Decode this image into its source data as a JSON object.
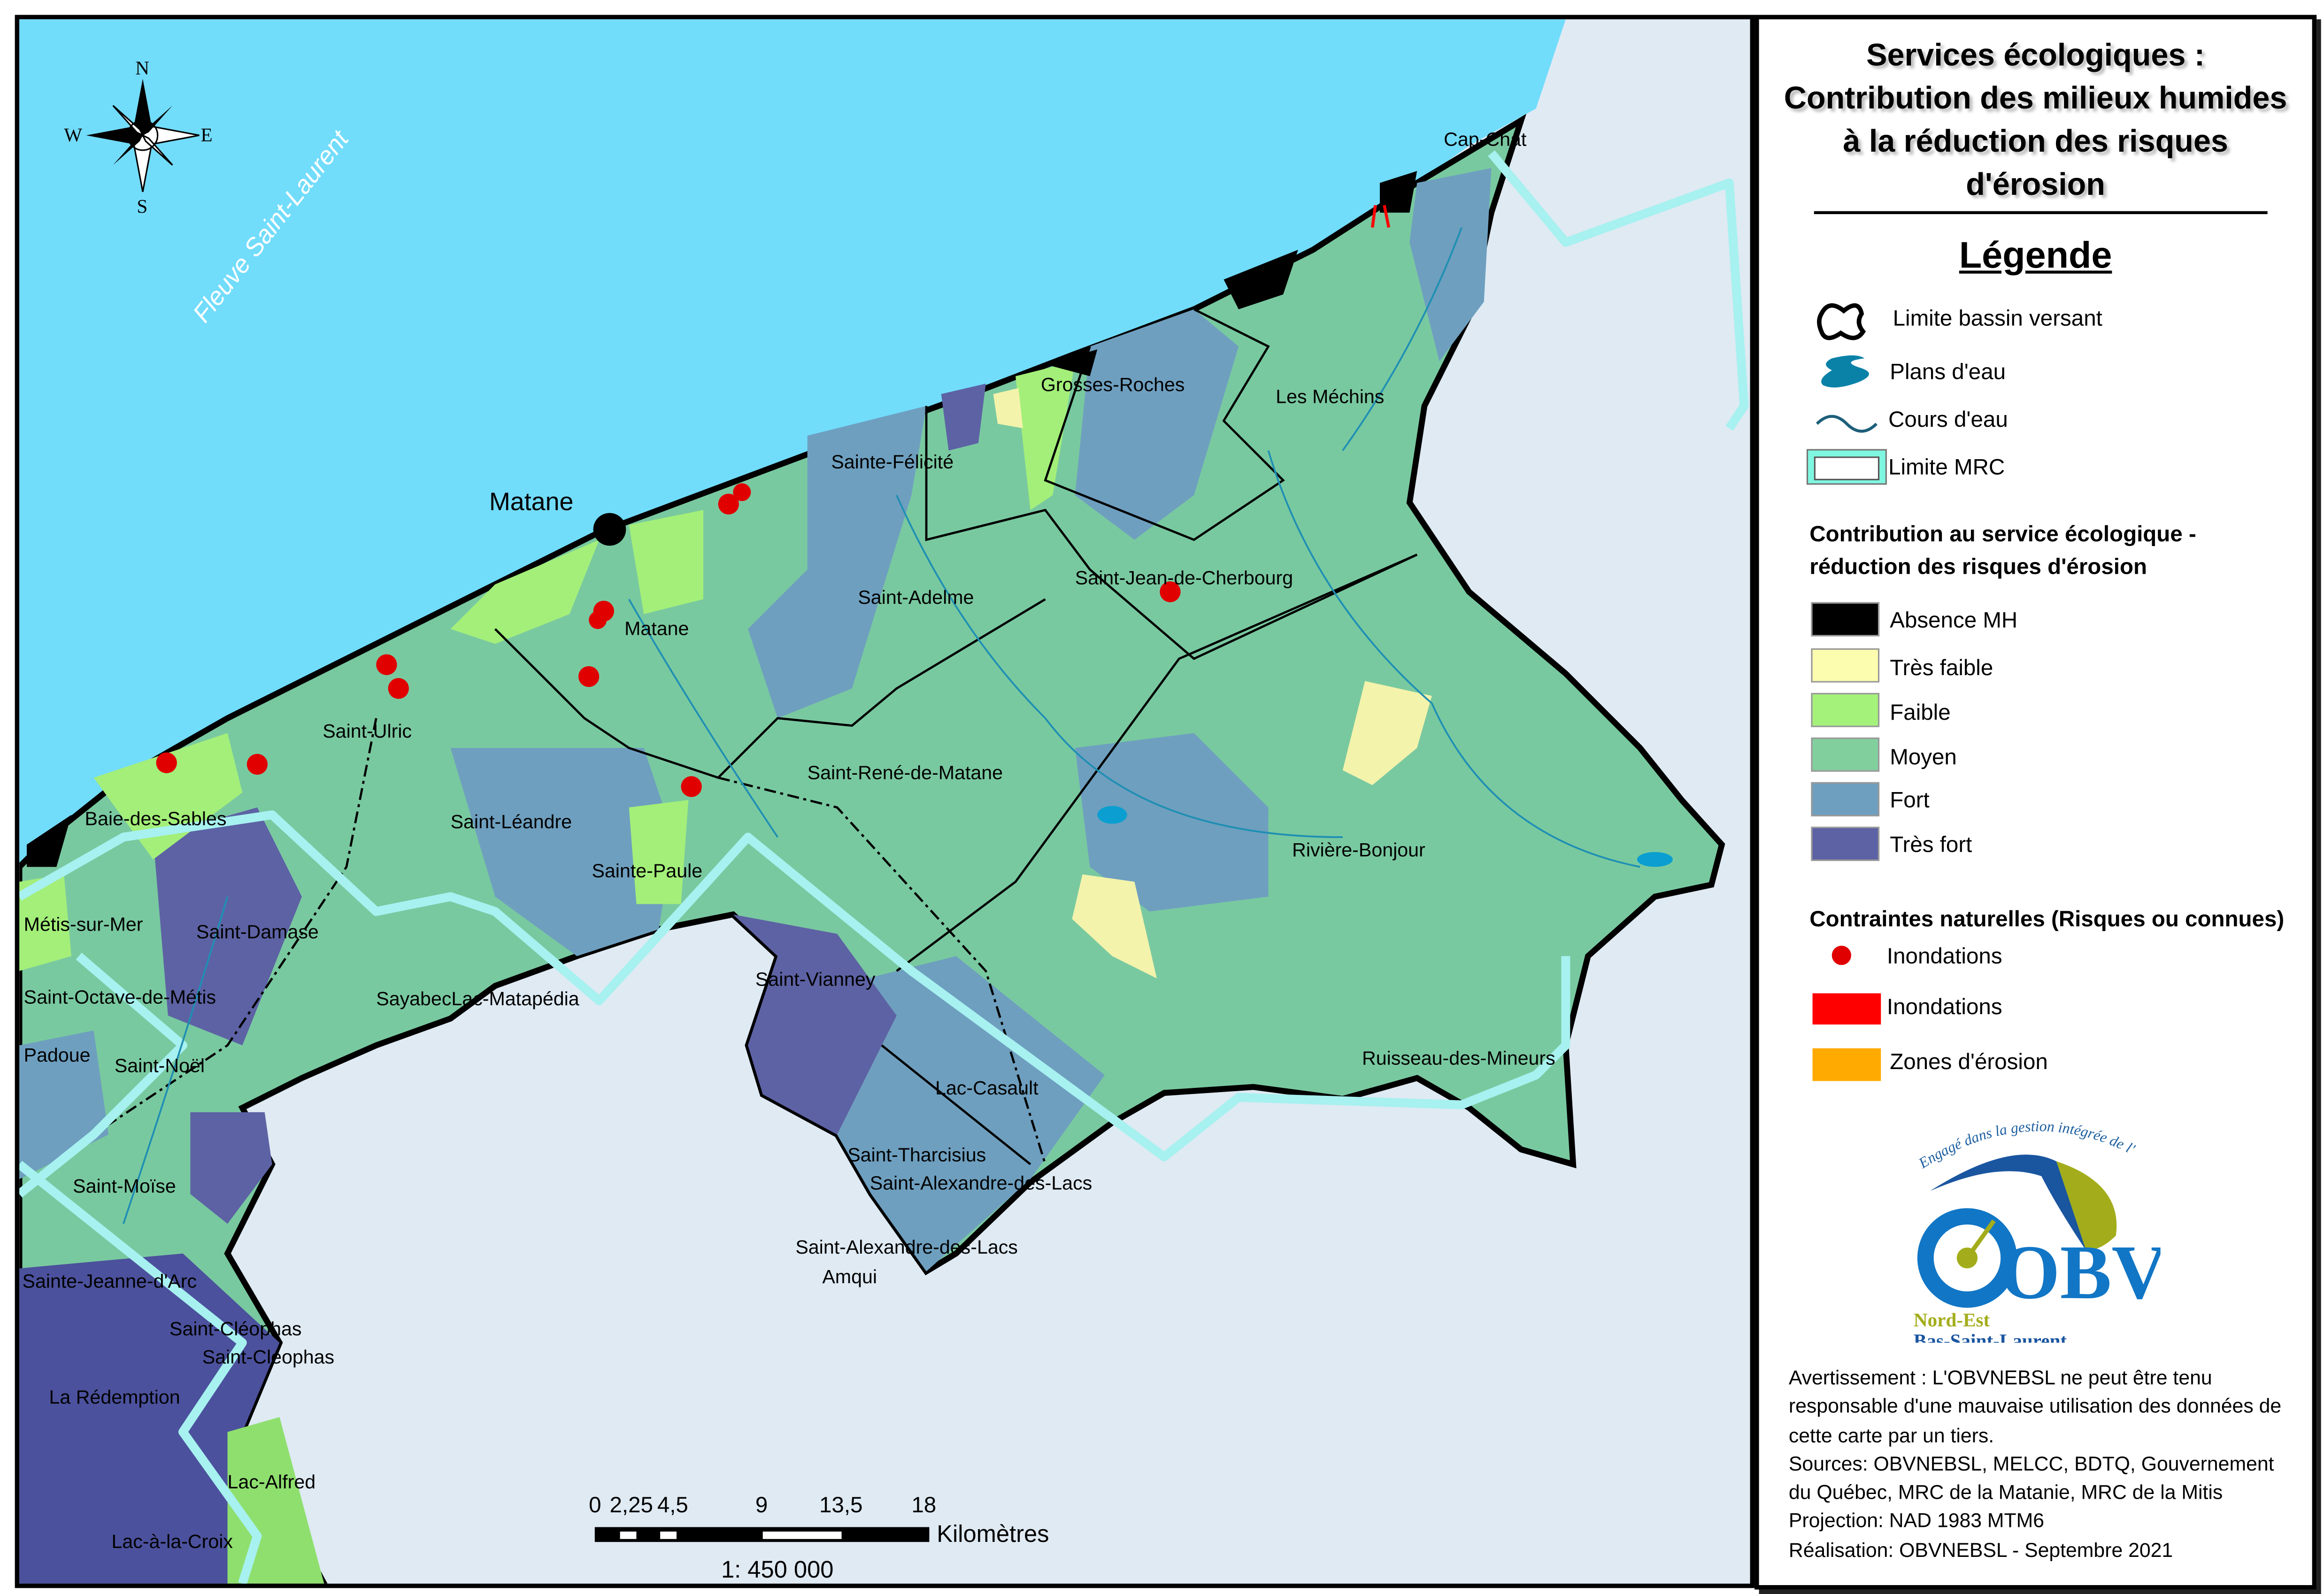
{
  "title": {
    "line1": "Services écologiques :",
    "line2": "Contribution des milieux humides",
    "line3": "à la réduction des risques",
    "line4": "d'érosion"
  },
  "legend": {
    "heading": "Légende",
    "base_items": [
      {
        "label": "Limite bassin versant",
        "icon": "watershed-outline-icon"
      },
      {
        "label": "Plans d'eau",
        "icon": "water-body-icon",
        "color": "#0a82a8"
      },
      {
        "label": "Cours d'eau",
        "icon": "stream-line-icon",
        "color": "#1d5f7a"
      },
      {
        "label": "Limite MRC",
        "icon": "mrc-boundary-icon",
        "color": "#7ff7e0"
      }
    ],
    "contribution_heading_1": "Contribution au service écologique -",
    "contribution_heading_2": "réduction des risques d'érosion",
    "classes": [
      {
        "label": "Absence MH",
        "color": "#000000"
      },
      {
        "label": "Très faible",
        "color": "#fdfdb0"
      },
      {
        "label": "Faible",
        "color": "#a4f27a"
      },
      {
        "label": "Moyen",
        "color": "#82cf9e"
      },
      {
        "label": "Fort",
        "color": "#6f9fbf"
      },
      {
        "label": "Très fort",
        "color": "#5d62a4"
      }
    ],
    "constraints_heading": "Contraintes naturelles (Risques ou connues)",
    "constraints": [
      {
        "label": "Inondations",
        "icon": "flood-point-icon",
        "color": "#e00000"
      },
      {
        "label": "Inondations",
        "icon": "flood-zone-icon",
        "color": "#ff0000"
      },
      {
        "label": "Zones d'érosion",
        "icon": "erosion-zone-icon",
        "color": "#ffaa00"
      }
    ]
  },
  "logo": {
    "tagline": "Engagé dans la gestion intégrée de l'eau",
    "letters": "OBV",
    "line1": "Nord-Est",
    "line2": "Bas-Saint-Laurent"
  },
  "footer": {
    "warning": "Avertissement : L'OBVNEBSL ne peut être tenu responsable d'une mauvaise utilisation des données de cette carte par un tiers.",
    "sources": "Sources: OBVNEBSL, MELCC, BDTQ, Gouvernement du Québec, MRC de la Matanie, MRC de la Mitis",
    "projection": "Projection: NAD 1983 MTM6",
    "realisation": "Réalisation: OBVNEBSL - Septembre 2021"
  },
  "compass": {
    "n": "N",
    "s": "S",
    "e": "E",
    "w": "W"
  },
  "scale_bar": {
    "ticks": [
      "0",
      "2,25",
      "4,5",
      "9",
      "13,5",
      "18"
    ],
    "unit": "Kilomètres",
    "ratio": "1: 450 000"
  },
  "map": {
    "water_label": "Fleuve Saint-Laurent",
    "city_label": "Matane",
    "colors": {
      "sea": "#72dcfb",
      "terrain": "#dfeaf3",
      "mrc": "#a7f1f0"
    },
    "labels": [
      "Cap-Chat",
      "Grosses-Roches",
      "Les Méchins",
      "Sainte-Félicité",
      "Saint-Adelme",
      "Saint-Jean-de-Cherbourg",
      "Matane",
      "Saint-Ulric",
      "Saint-René-de-Matane",
      "Baie-des-Sables",
      "Saint-Léandre",
      "Sainte-Paule",
      "Rivière-Bonjour",
      "Métis-sur-Mer",
      "Saint-Damase",
      "Saint-Octave-de-Métis",
      "SayabecLac-Matapédia",
      "Saint-Vianney",
      "Padoue",
      "Saint-Noël",
      "Lac-Casault",
      "Ruisseau-des-Mineurs",
      "Saint-Tharcisius",
      "Saint-Alexandre-des-Lacs",
      "Saint-Moïse",
      "Saint-Alexandre-des-Lacs",
      "Amqui",
      "Sainte-Jeanne-d'Arc",
      "Saint-Cléophas",
      "Saint-Cléophas",
      "La Rédemption",
      "Lac-Alfred",
      "Lac-à-la-Croix"
    ]
  }
}
